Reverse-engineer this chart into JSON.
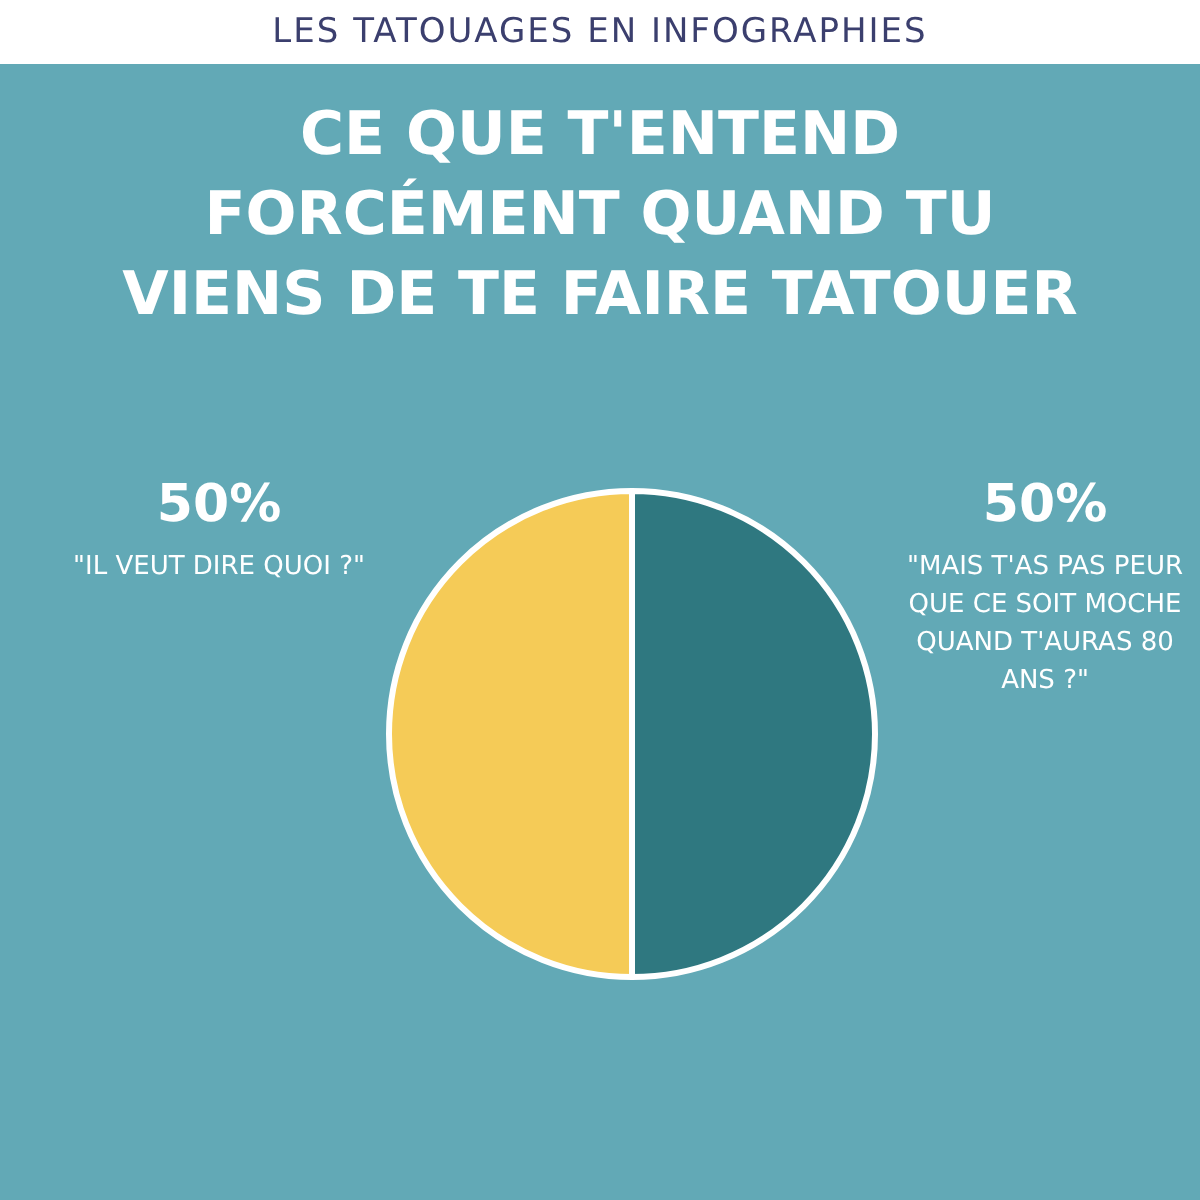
{
  "chart_data": {
    "type": "pie",
    "subtitle": "LES TATOUAGES EN INFOGRAPHIES",
    "title": "CE QUE T'ENTEND FORCÉMENT QUAND TU VIENS DE TE FAIRE TATOUER",
    "categories": [
      "\"MAIS T'AS PAS PEUR QUE CE SOIT MOCHE QUAND T'AURAS 80 ANS ?\"",
      "\"IL VEUT DIRE QUOI ?\""
    ],
    "values": [
      50,
      50
    ],
    "value_labels": [
      "50%",
      "50%"
    ],
    "colors": [
      "#2f7880",
      "#f5cb57"
    ],
    "legend": false
  }
}
